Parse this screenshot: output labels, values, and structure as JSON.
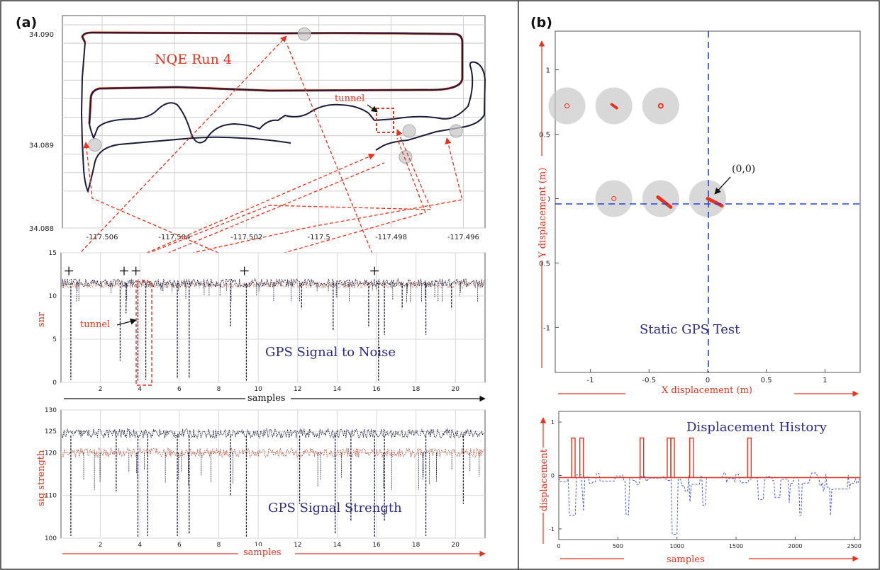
{
  "panels": {
    "a_label": "(a)",
    "b_label": "(b)"
  },
  "colors": {
    "trace_dark": "#1b1b3a",
    "trace_red": "#d8402a",
    "annotation_red": "#e8321e",
    "title_blue": "#2a2a8a",
    "dashed_blue": "#2040e0",
    "marker_gray": "#c8c8c8"
  },
  "chart_data": [
    {
      "id": "nqe_run4",
      "type": "line",
      "title": "NQE Run 4",
      "annotation": "tunnel",
      "xlabel": "",
      "ylabel": "",
      "x_ticks": [
        "-117.506",
        "-117.504",
        "-117.502",
        "-117.5",
        "-117.498",
        "-117.496"
      ],
      "y_ticks": [
        "34.090",
        "34.089",
        "34.088"
      ],
      "xlim": [
        -117.5071,
        -117.4954
      ],
      "ylim": [
        34.088,
        34.0903
      ],
      "grid": true,
      "markers": [
        {
          "x": -117.5004,
          "y": 34.0901
        },
        {
          "x": -117.5062,
          "y": 34.0889
        },
        {
          "x": -117.4975,
          "y": 34.08905
        },
        {
          "x": -117.4962,
          "y": 34.08905
        },
        {
          "x": -117.4976,
          "y": 34.08877
        }
      ]
    },
    {
      "id": "snr",
      "type": "line",
      "title": "GPS Signal to Noise",
      "annotation": "tunnel",
      "xlabel": "samples",
      "ylabel": "snr",
      "x_ticks": [
        "2",
        "4",
        "6",
        "8",
        "10",
        "12",
        "14",
        "16",
        "18",
        "20"
      ],
      "y_ticks": [
        "15",
        "10",
        "5",
        "0"
      ],
      "xlim": [
        0,
        21.5
      ],
      "ylim": [
        0,
        15
      ],
      "grid": true,
      "baseline": 11.5,
      "dropouts": [
        {
          "x": 0.5,
          "y": 0.3
        },
        {
          "x": 3.0,
          "y": 2.5
        },
        {
          "x": 3.3,
          "y": 8.0
        },
        {
          "x": 3.9,
          "y": 0.2
        },
        {
          "x": 4.3,
          "y": 0.3
        },
        {
          "x": 5.9,
          "y": 0.4
        },
        {
          "x": 6.5,
          "y": 0.5
        },
        {
          "x": 8.6,
          "y": 6.5
        },
        {
          "x": 9.4,
          "y": 0.2
        },
        {
          "x": 12.2,
          "y": 8.5
        },
        {
          "x": 13.8,
          "y": 6.0
        },
        {
          "x": 15.6,
          "y": 6.5
        },
        {
          "x": 16.1,
          "y": 0.2
        },
        {
          "x": 16.4,
          "y": 5.5
        },
        {
          "x": 17.3,
          "y": 8.5
        },
        {
          "x": 18.5,
          "y": 5.5
        },
        {
          "x": 19.8,
          "y": 8.5
        }
      ],
      "plus_markers": [
        {
          "x": 0.4,
          "y": 12.9
        },
        {
          "x": 3.2,
          "y": 12.9
        },
        {
          "x": 3.8,
          "y": 12.9
        },
        {
          "x": 9.3,
          "y": 12.9
        },
        {
          "x": 15.9,
          "y": 12.9
        }
      ]
    },
    {
      "id": "sig_strength",
      "type": "line",
      "title": "GPS Signal Strength",
      "xlabel": "samples",
      "ylabel": "sig strength",
      "x_ticks": [
        "2",
        "4",
        "6",
        "8",
        "10",
        "12",
        "14",
        "16",
        "18",
        "20"
      ],
      "y_ticks": [
        "130",
        "125",
        "120",
        "110",
        "100"
      ],
      "xlim": [
        0,
        21.5
      ],
      "ylim": [
        100,
        130
      ],
      "grid": true,
      "series": [
        {
          "baseline": 124.5
        },
        {
          "baseline": 120
        }
      ],
      "dropouts": [
        {
          "x": 0.5,
          "y": 100.5
        },
        {
          "x": 2.8,
          "y": 111
        },
        {
          "x": 3.9,
          "y": 100.2
        },
        {
          "x": 4.4,
          "y": 100.5
        },
        {
          "x": 5.9,
          "y": 100.5
        },
        {
          "x": 6.5,
          "y": 101
        },
        {
          "x": 8.6,
          "y": 110
        },
        {
          "x": 9.4,
          "y": 100.2
        },
        {
          "x": 12.1,
          "y": 108
        },
        {
          "x": 13.9,
          "y": 101
        },
        {
          "x": 14.7,
          "y": 104
        },
        {
          "x": 15.9,
          "y": 100.2
        },
        {
          "x": 16.4,
          "y": 104
        },
        {
          "x": 18.5,
          "y": 100.5
        },
        {
          "x": 20.4,
          "y": 108
        }
      ]
    },
    {
      "id": "static_gps",
      "type": "scatter",
      "title": "Static GPS Test",
      "annotation": "(0,0)",
      "xlabel": "X displacement (m)",
      "ylabel": "Y displacement (m)",
      "x_ticks": [
        "-1",
        "-0.5",
        "0",
        "0.5",
        "1"
      ],
      "y_ticks": [
        "1",
        "0.5",
        "0",
        "0.5",
        "-1"
      ],
      "xlim": [
        -1.3,
        1.3
      ],
      "ylim": [
        -1.35,
        1.3
      ],
      "grid": false,
      "positions": [
        {
          "x": -1.2,
          "y": 0.72
        },
        {
          "x": -0.8,
          "y": 0.72
        },
        {
          "x": -0.4,
          "y": 0.72
        },
        {
          "x": -0.8,
          "y": 0.0
        },
        {
          "x": -0.4,
          "y": 0.0
        },
        {
          "x": 0.0,
          "y": 0.0
        }
      ]
    },
    {
      "id": "displacement_history",
      "type": "line",
      "title": "Displacement History",
      "xlabel": "samples",
      "ylabel": "displacement",
      "x_ticks": [
        "0",
        "500",
        "1000",
        "1500",
        "2000",
        "2500"
      ],
      "y_ticks": [
        "1",
        "0",
        "-1"
      ],
      "xlim": [
        0,
        2550
      ],
      "ylim": [
        -1.2,
        1.2
      ],
      "grid": false,
      "spikes": [
        {
          "x": 120,
          "y": 0.7
        },
        {
          "x": 190,
          "y": 0.7
        },
        {
          "x": 700,
          "y": 0.7
        },
        {
          "x": 930,
          "y": 0.7
        },
        {
          "x": 960,
          "y": 0.7
        },
        {
          "x": 1120,
          "y": 0.7
        },
        {
          "x": 1610,
          "y": 0.7
        }
      ]
    }
  ]
}
